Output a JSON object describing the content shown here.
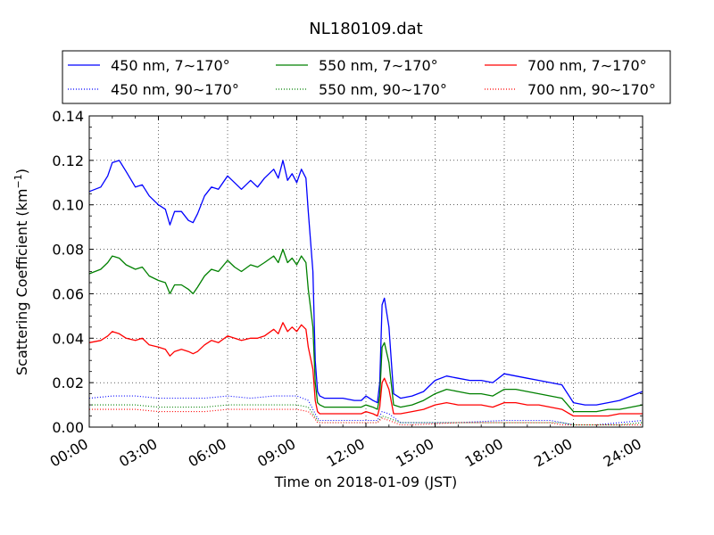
{
  "chart_data": {
    "type": "line",
    "title": "NL180109.dat",
    "xlabel": "Time on 2018-01-09 (JST)",
    "ylabel": "Scattering Coefficient (km",
    "ylabel_sup": "−1",
    "ylabel_close": ")",
    "x_unit": "hours",
    "xlim": [
      0,
      24
    ],
    "ylim": [
      0,
      0.14
    ],
    "grid": true,
    "legend_position": "top",
    "x_ticks": [
      {
        "value": 0,
        "label": "00:00"
      },
      {
        "value": 3,
        "label": "03:00"
      },
      {
        "value": 6,
        "label": "06:00"
      },
      {
        "value": 9,
        "label": "09:00"
      },
      {
        "value": 12,
        "label": "12:00"
      },
      {
        "value": 15,
        "label": "15:00"
      },
      {
        "value": 18,
        "label": "18:00"
      },
      {
        "value": 21,
        "label": "21:00"
      },
      {
        "value": 24,
        "label": "24:00"
      }
    ],
    "y_ticks": [
      {
        "value": 0.0,
        "label": "0.00"
      },
      {
        "value": 0.02,
        "label": "0.02"
      },
      {
        "value": 0.04,
        "label": "0.04"
      },
      {
        "value": 0.06,
        "label": "0.06"
      },
      {
        "value": 0.08,
        "label": "0.08"
      },
      {
        "value": 0.1,
        "label": "0.10"
      },
      {
        "value": 0.12,
        "label": "0.12"
      },
      {
        "value": 0.14,
        "label": "0.14"
      }
    ],
    "series": [
      {
        "name": "450 nm, 7∼170°",
        "color": "#0000ff",
        "style": "solid",
        "x": [
          0,
          0.5,
          0.8,
          1,
          1.3,
          1.6,
          2,
          2.3,
          2.6,
          3,
          3.3,
          3.5,
          3.7,
          4,
          4.3,
          4.5,
          4.7,
          5,
          5.3,
          5.6,
          6,
          6.3,
          6.6,
          7,
          7.3,
          7.6,
          8,
          8.2,
          8.4,
          8.6,
          8.8,
          9,
          9.2,
          9.4,
          9.5,
          9.7,
          9.8,
          9.9,
          10,
          10.2,
          10.5,
          11,
          11.5,
          11.8,
          12,
          12.3,
          12.5,
          12.6,
          12.7,
          12.8,
          13,
          13.2,
          13.5,
          14,
          14.5,
          15,
          15.5,
          16,
          16.5,
          17,
          17.5,
          18,
          18.5,
          19,
          19.5,
          20,
          20.5,
          21,
          21.5,
          22,
          22.5,
          23,
          23.5,
          24
        ],
        "y": [
          0.106,
          0.108,
          0.113,
          0.119,
          0.12,
          0.115,
          0.108,
          0.109,
          0.104,
          0.1,
          0.098,
          0.091,
          0.097,
          0.097,
          0.093,
          0.092,
          0.096,
          0.104,
          0.108,
          0.107,
          0.113,
          0.11,
          0.107,
          0.111,
          0.108,
          0.112,
          0.116,
          0.112,
          0.12,
          0.111,
          0.114,
          0.11,
          0.116,
          0.112,
          0.097,
          0.07,
          0.03,
          0.016,
          0.014,
          0.013,
          0.013,
          0.013,
          0.012,
          0.012,
          0.014,
          0.012,
          0.011,
          0.02,
          0.055,
          0.058,
          0.045,
          0.015,
          0.013,
          0.014,
          0.016,
          0.021,
          0.023,
          0.022,
          0.021,
          0.021,
          0.02,
          0.024,
          0.023,
          0.022,
          0.021,
          0.02,
          0.019,
          0.011,
          0.01,
          0.01,
          0.011,
          0.012,
          0.014,
          0.016
        ]
      },
      {
        "name": "550 nm, 7∼170°",
        "color": "#008000",
        "style": "solid",
        "x": [
          0,
          0.5,
          0.8,
          1,
          1.3,
          1.6,
          2,
          2.3,
          2.6,
          3,
          3.3,
          3.5,
          3.7,
          4,
          4.3,
          4.5,
          4.7,
          5,
          5.3,
          5.6,
          6,
          6.3,
          6.6,
          7,
          7.3,
          7.6,
          8,
          8.2,
          8.4,
          8.6,
          8.8,
          9,
          9.2,
          9.4,
          9.5,
          9.7,
          9.8,
          9.9,
          10,
          10.2,
          10.5,
          11,
          11.5,
          11.8,
          12,
          12.3,
          12.5,
          12.6,
          12.7,
          12.8,
          13,
          13.2,
          13.5,
          14,
          14.5,
          15,
          15.5,
          16,
          16.5,
          17,
          17.5,
          18,
          18.5,
          19,
          19.5,
          20,
          20.5,
          21,
          21.5,
          22,
          22.5,
          23,
          23.5,
          24
        ],
        "y": [
          0.069,
          0.071,
          0.074,
          0.077,
          0.076,
          0.073,
          0.071,
          0.072,
          0.068,
          0.066,
          0.065,
          0.06,
          0.064,
          0.064,
          0.062,
          0.06,
          0.063,
          0.068,
          0.071,
          0.07,
          0.075,
          0.072,
          0.07,
          0.073,
          0.072,
          0.074,
          0.077,
          0.074,
          0.08,
          0.074,
          0.076,
          0.073,
          0.077,
          0.074,
          0.062,
          0.045,
          0.02,
          0.011,
          0.01,
          0.009,
          0.009,
          0.009,
          0.009,
          0.009,
          0.01,
          0.009,
          0.008,
          0.014,
          0.036,
          0.038,
          0.029,
          0.01,
          0.009,
          0.01,
          0.012,
          0.015,
          0.017,
          0.016,
          0.015,
          0.015,
          0.014,
          0.017,
          0.017,
          0.016,
          0.015,
          0.014,
          0.013,
          0.007,
          0.007,
          0.007,
          0.008,
          0.008,
          0.009,
          0.01
        ]
      },
      {
        "name": "700 nm, 7∼170°",
        "color": "#ff0000",
        "style": "solid",
        "x": [
          0,
          0.5,
          0.8,
          1,
          1.3,
          1.6,
          2,
          2.3,
          2.6,
          3,
          3.3,
          3.5,
          3.7,
          4,
          4.3,
          4.5,
          4.7,
          5,
          5.3,
          5.6,
          6,
          6.3,
          6.6,
          7,
          7.3,
          7.6,
          8,
          8.2,
          8.4,
          8.6,
          8.8,
          9,
          9.2,
          9.4,
          9.5,
          9.7,
          9.8,
          9.9,
          10,
          10.2,
          10.5,
          11,
          11.5,
          11.8,
          12,
          12.3,
          12.5,
          12.6,
          12.7,
          12.8,
          13,
          13.2,
          13.5,
          14,
          14.5,
          15,
          15.5,
          16,
          16.5,
          17,
          17.5,
          18,
          18.5,
          19,
          19.5,
          20,
          20.5,
          21,
          21.5,
          22,
          22.5,
          23,
          23.5,
          24
        ],
        "y": [
          0.038,
          0.039,
          0.041,
          0.043,
          0.042,
          0.04,
          0.039,
          0.04,
          0.037,
          0.036,
          0.035,
          0.032,
          0.034,
          0.035,
          0.034,
          0.033,
          0.034,
          0.037,
          0.039,
          0.038,
          0.041,
          0.04,
          0.039,
          0.04,
          0.04,
          0.041,
          0.044,
          0.042,
          0.047,
          0.043,
          0.045,
          0.043,
          0.046,
          0.044,
          0.036,
          0.026,
          0.012,
          0.007,
          0.006,
          0.006,
          0.006,
          0.006,
          0.006,
          0.006,
          0.007,
          0.006,
          0.005,
          0.009,
          0.02,
          0.022,
          0.017,
          0.006,
          0.006,
          0.007,
          0.008,
          0.01,
          0.011,
          0.01,
          0.01,
          0.01,
          0.009,
          0.011,
          0.011,
          0.01,
          0.01,
          0.009,
          0.008,
          0.005,
          0.005,
          0.005,
          0.005,
          0.006,
          0.006,
          0.006
        ]
      },
      {
        "name": "450 nm, 90∼170°",
        "color": "#0000ff",
        "style": "dotted",
        "x": [
          0,
          1,
          2,
          3,
          4,
          5,
          6,
          7,
          8,
          9,
          9.5,
          9.7,
          9.9,
          10,
          11,
          12,
          12.5,
          12.7,
          13,
          13.5,
          14,
          16,
          18,
          20,
          20.5,
          21,
          22,
          23,
          24
        ],
        "y": [
          0.013,
          0.014,
          0.014,
          0.013,
          0.013,
          0.013,
          0.014,
          0.013,
          0.014,
          0.014,
          0.012,
          0.008,
          0.004,
          0.003,
          0.003,
          0.003,
          0.003,
          0.007,
          0.006,
          0.002,
          0.002,
          0.002,
          0.003,
          0.003,
          0.002,
          0.001,
          0.001,
          0.002,
          0.003
        ]
      },
      {
        "name": "550 nm, 90∼170°",
        "color": "#008000",
        "style": "dotted",
        "x": [
          0,
          1,
          2,
          3,
          4,
          5,
          6,
          7,
          8,
          9,
          9.5,
          9.7,
          9.9,
          10,
          11,
          12,
          12.5,
          12.7,
          13,
          13.5,
          14,
          16,
          18,
          20,
          20.5,
          21,
          22,
          23,
          24
        ],
        "y": [
          0.01,
          0.01,
          0.01,
          0.009,
          0.009,
          0.009,
          0.01,
          0.01,
          0.01,
          0.01,
          0.009,
          0.006,
          0.003,
          0.002,
          0.002,
          0.002,
          0.002,
          0.005,
          0.004,
          0.002,
          0.002,
          0.002,
          0.002,
          0.002,
          0.002,
          0.001,
          0.001,
          0.001,
          0.002
        ]
      },
      {
        "name": "700 nm, 90∼170°",
        "color": "#ff0000",
        "style": "dotted",
        "x": [
          0,
          1,
          2,
          3,
          4,
          5,
          6,
          7,
          8,
          9,
          9.5,
          9.7,
          9.9,
          10,
          11,
          12,
          12.5,
          12.7,
          13,
          13.5,
          14,
          16,
          18,
          20,
          20.5,
          21,
          22,
          23,
          24
        ],
        "y": [
          0.008,
          0.008,
          0.008,
          0.007,
          0.007,
          0.007,
          0.008,
          0.008,
          0.008,
          0.008,
          0.007,
          0.005,
          0.002,
          0.002,
          0.002,
          0.002,
          0.002,
          0.004,
          0.003,
          0.001,
          0.001,
          0.002,
          0.002,
          0.002,
          0.001,
          0.001,
          0.001,
          0.001,
          0.001
        ]
      }
    ]
  }
}
